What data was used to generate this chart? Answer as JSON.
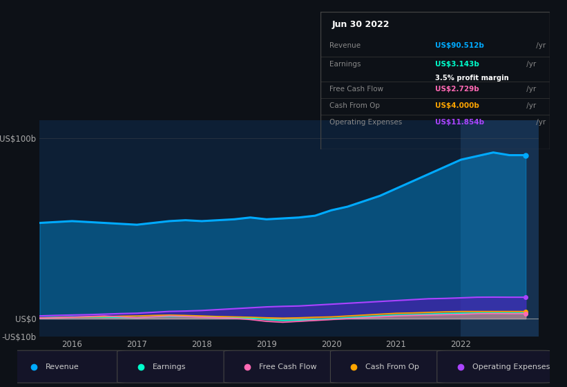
{
  "bg_color": "#0d1117",
  "plot_bg_color": "#0d1f35",
  "highlight_bg_color": "#1a3a5c",
  "title_date": "Jun 30 2022",
  "ylim": [
    -10,
    110
  ],
  "yticks": [
    -10,
    0,
    100
  ],
  "ytick_labels": [
    "-US$10b",
    "US$0",
    "US$100b"
  ],
  "xlim": [
    2015.5,
    2023.2
  ],
  "xticks": [
    2016,
    2017,
    2018,
    2019,
    2020,
    2021,
    2022
  ],
  "legend": [
    {
      "label": "Revenue",
      "color": "#00aaff"
    },
    {
      "label": "Earnings",
      "color": "#00ffcc"
    },
    {
      "label": "Free Cash Flow",
      "color": "#ff69b4"
    },
    {
      "label": "Cash From Op",
      "color": "#ffa500"
    },
    {
      "label": "Operating Expenses",
      "color": "#aa44ff"
    }
  ],
  "table_rows": [
    {
      "label": "Revenue",
      "value": "US$90.512b",
      "value_color": "#00aaff",
      "unit": " /yr",
      "sub": null,
      "sub_color": null
    },
    {
      "label": "Earnings",
      "value": "US$3.143b",
      "value_color": "#00ffcc",
      "unit": " /yr",
      "sub": "3.5% profit margin",
      "sub_color": "#ffffff"
    },
    {
      "label": "Free Cash Flow",
      "value": "US$2.729b",
      "value_color": "#ff69b4",
      "unit": " /yr",
      "sub": null,
      "sub_color": null
    },
    {
      "label": "Cash From Op",
      "value": "US$4.000b",
      "value_color": "#ffa500",
      "unit": " /yr",
      "sub": null,
      "sub_color": null
    },
    {
      "label": "Operating Expenses",
      "value": "US$11.854b",
      "value_color": "#aa44ff",
      "unit": " /yr",
      "sub": null,
      "sub_color": null
    }
  ],
  "series": {
    "x": [
      2015.5,
      2015.75,
      2016.0,
      2016.25,
      2016.5,
      2016.75,
      2017.0,
      2017.25,
      2017.5,
      2017.75,
      2018.0,
      2018.25,
      2018.5,
      2018.75,
      2019.0,
      2019.25,
      2019.5,
      2019.75,
      2020.0,
      2020.25,
      2020.5,
      2020.75,
      2021.0,
      2021.25,
      2021.5,
      2021.75,
      2022.0,
      2022.25,
      2022.5,
      2022.75,
      2023.0
    ],
    "revenue": [
      53,
      53.5,
      54,
      53.5,
      53,
      52.5,
      52,
      53,
      54,
      54.5,
      54,
      54.5,
      55,
      56,
      55,
      55.5,
      56,
      57,
      60,
      62,
      65,
      68,
      72,
      76,
      80,
      84,
      88,
      90,
      92,
      90.512,
      90.512
    ],
    "earnings": [
      0.5,
      0.8,
      1.0,
      0.9,
      0.8,
      0.7,
      0.6,
      1.0,
      1.2,
      1.1,
      1.0,
      0.8,
      0.5,
      0.3,
      -0.5,
      -1.0,
      -0.8,
      -0.5,
      0.0,
      0.5,
      1.0,
      1.5,
      2.0,
      2.2,
      2.5,
      2.8,
      3.0,
      3.143,
      3.2,
      3.143,
      3.143
    ],
    "free_cash_flow": [
      0.3,
      0.5,
      0.8,
      1.2,
      1.5,
      1.0,
      0.5,
      1.0,
      1.5,
      1.2,
      0.8,
      0.5,
      0.2,
      -0.5,
      -1.5,
      -2.0,
      -1.5,
      -1.0,
      -0.5,
      0.0,
      0.5,
      1.0,
      1.5,
      1.8,
      2.0,
      2.2,
      2.4,
      2.729,
      2.8,
      2.729,
      2.729
    ],
    "cash_from_op": [
      0.4,
      0.6,
      0.8,
      1.0,
      1.2,
      1.4,
      1.5,
      1.8,
      2.0,
      1.8,
      1.5,
      1.2,
      1.0,
      0.8,
      0.5,
      0.3,
      0.5,
      0.8,
      1.0,
      1.5,
      2.0,
      2.5,
      3.0,
      3.2,
      3.5,
      3.8,
      4.0,
      4.0,
      4.0,
      4.0,
      4.0
    ],
    "operating_expenses": [
      1.5,
      1.8,
      2.0,
      2.2,
      2.5,
      2.8,
      3.0,
      3.5,
      4.0,
      4.2,
      4.5,
      5.0,
      5.5,
      6.0,
      6.5,
      6.8,
      7.0,
      7.5,
      8.0,
      8.5,
      9.0,
      9.5,
      10.0,
      10.5,
      11.0,
      11.2,
      11.5,
      11.854,
      11.9,
      11.854,
      11.854
    ]
  }
}
